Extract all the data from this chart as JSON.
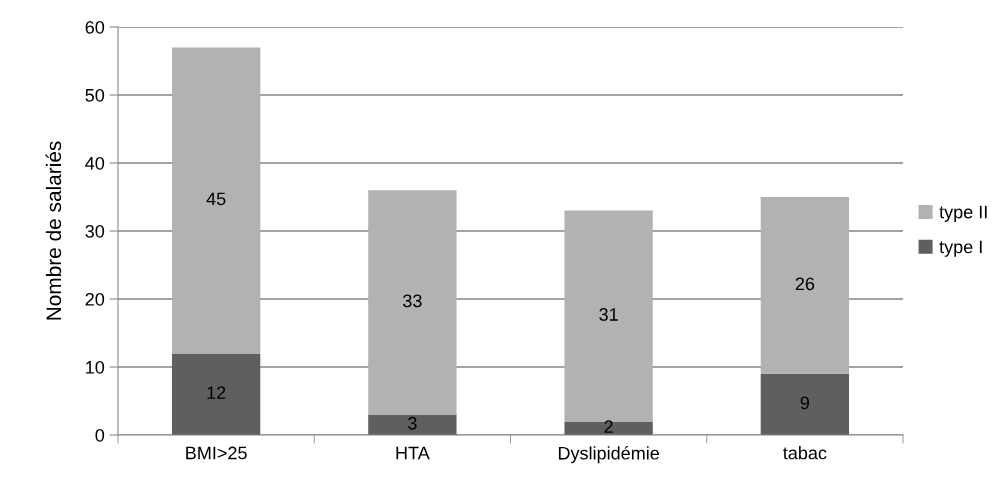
{
  "chart_data": {
    "type": "bar",
    "stacked": true,
    "ylabel": "Nombre de salariés",
    "categories": [
      "BMI>25",
      "HTA",
      "Dyslipidémie",
      "tabac"
    ],
    "series": [
      {
        "name": "type I",
        "color": "#5f5f5f",
        "values": [
          12,
          3,
          2,
          9
        ]
      },
      {
        "name": "type II",
        "color": "#b2b2b2",
        "values": [
          45,
          33,
          31,
          26
        ]
      }
    ],
    "ylim": [
      0,
      60
    ],
    "yticks": [
      0,
      10,
      20,
      30,
      40,
      50,
      60
    ],
    "grid": "y",
    "legend": "right",
    "data_labels": true
  }
}
